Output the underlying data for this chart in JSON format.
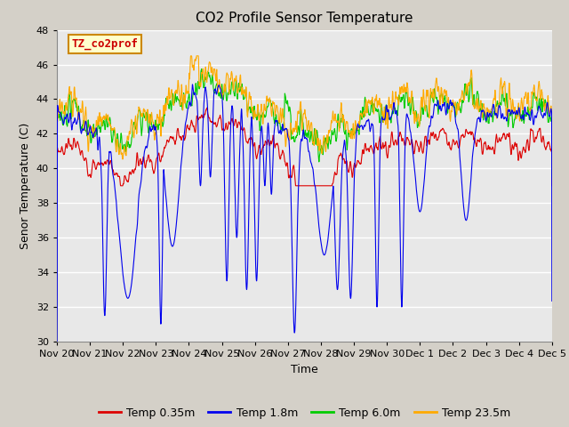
{
  "title": "CO2 Profile Sensor Temperature",
  "xlabel": "Time",
  "ylabel": "Senor Temperature (C)",
  "ylim": [
    30,
    48
  ],
  "yticks": [
    30,
    32,
    34,
    36,
    38,
    40,
    42,
    44,
    46,
    48
  ],
  "xlim": [
    0,
    15
  ],
  "xtick_labels": [
    "Nov 20",
    "Nov 21",
    "Nov 22",
    "Nov 23",
    "Nov 24",
    "Nov 25",
    "Nov 26",
    "Nov 27",
    "Nov 28",
    "Nov 29",
    "Nov 30",
    "Dec 1",
    "Dec 2",
    "Dec 3",
    "Dec 4",
    "Dec 5"
  ],
  "legend_labels": [
    "Temp 0.35m",
    "Temp 1.8m",
    "Temp 6.0m",
    "Temp 23.5m"
  ],
  "legend_colors": [
    "#dd0000",
    "#0000ee",
    "#00cc00",
    "#ffaa00"
  ],
  "annotation_text": "TZ_co2prof",
  "annotation_color": "#cc0000",
  "annotation_bg": "#ffffcc",
  "annotation_border": "#cc8800",
  "fig_bg": "#d4d0c8",
  "plot_bg": "#e8e8e8",
  "title_fontsize": 11,
  "axis_fontsize": 9,
  "tick_fontsize": 8
}
